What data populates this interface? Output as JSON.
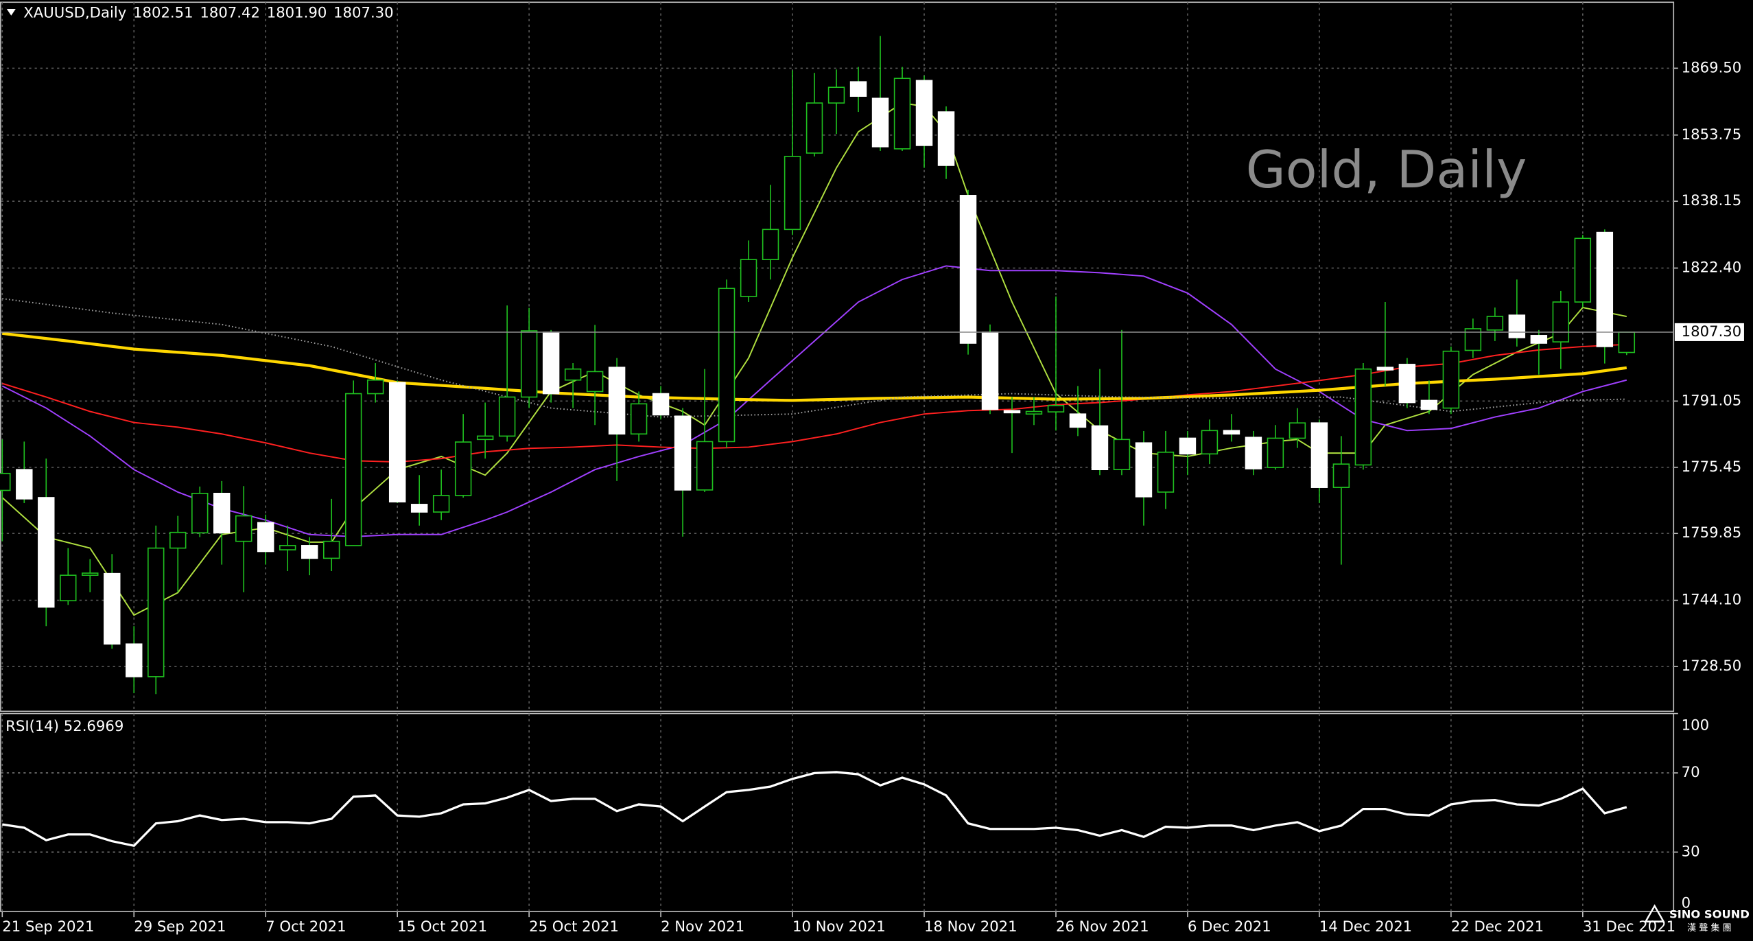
{
  "chart_data": [
    {
      "type": "candlestick",
      "title": "XAUUSD,Daily",
      "ohlc_labels": [
        "1802.51",
        "1807.42",
        "1801.90",
        "1807.30"
      ],
      "annotation": "Gold, Daily",
      "categories": [
        "21 Sep 2021",
        null,
        null,
        null,
        null,
        null,
        "29 Sep 2021",
        null,
        null,
        null,
        null,
        null,
        "7 Oct 2021",
        null,
        null,
        null,
        null,
        null,
        "15 Oct 2021",
        null,
        null,
        null,
        null,
        null,
        "25 Oct 2021",
        null,
        null,
        null,
        null,
        null,
        "2 Nov 2021",
        null,
        null,
        null,
        null,
        null,
        "10 Nov 2021",
        null,
        null,
        null,
        null,
        null,
        "18 Nov 2021",
        null,
        null,
        null,
        null,
        null,
        "26 Nov 2021",
        null,
        null,
        null,
        null,
        null,
        "6 Dec 2021",
        null,
        null,
        null,
        null,
        null,
        "14 Dec 2021",
        null,
        null,
        null,
        null,
        null,
        "22 Dec 2021",
        null,
        null,
        null,
        null,
        null,
        "31 Dec 2021",
        null,
        null
      ],
      "open": [
        1770,
        1774.9,
        1768.3,
        1744,
        1750,
        1750.4,
        1733.8,
        1726.1,
        1756.4,
        1760,
        1769.3,
        1758,
        1762.4,
        1756,
        1757,
        1754,
        1757,
        1792.8,
        1795.4,
        1766.7,
        1764.9,
        1768.8,
        1782,
        1782.8,
        1792,
        1807.3,
        1796,
        1793.3,
        1799,
        1783.3,
        1792.8,
        1787.5,
        1770.1,
        1781.5,
        1815.7,
        1824.4,
        1831.5,
        1849.5,
        1861.3,
        1866.3,
        1862.4,
        1850.5,
        1866.6,
        1859.2,
        1839.5,
        1807.3,
        1788.8,
        1788,
        1788.5,
        1788,
        1785.2,
        1774.9,
        1781.2,
        1769.6,
        1782.3,
        1778.6,
        1784.1,
        1782.5,
        1775.4,
        1782.3,
        1785.9,
        1770.7,
        1776,
        1799,
        1799.7,
        1791.2,
        1789.4,
        1803,
        1807.8,
        1811.3,
        1806.5,
        1805,
        1814.4,
        1830.8,
        1802.51
      ],
      "high": [
        1782,
        1781.5,
        1777.5,
        1756.4,
        1753.8,
        1755,
        1738,
        1761.7,
        1764,
        1770.9,
        1772.2,
        1771,
        1764.3,
        1761.7,
        1759,
        1768,
        1795.9,
        1800,
        1795.9,
        1773.6,
        1774.9,
        1788,
        1790.7,
        1813.6,
        1813,
        1807.8,
        1800,
        1809,
        1801.2,
        1793.3,
        1794.6,
        1789.4,
        1798.6,
        1819.7,
        1828.9,
        1842,
        1869,
        1868.4,
        1869.2,
        1869.8,
        1877.1,
        1869.8,
        1867.7,
        1860.5,
        1840.8,
        1809.1,
        1792,
        1792,
        1815.7,
        1794.6,
        1798.6,
        1807.8,
        1784,
        1784,
        1784,
        1786.7,
        1788,
        1784,
        1785.4,
        1789.4,
        1786.7,
        1782.8,
        1800,
        1814.4,
        1801.2,
        1795.9,
        1803.9,
        1810.5,
        1813.1,
        1819.7,
        1807.8,
        1817,
        1830.2,
        1831.5,
        1807.42
      ],
      "low": [
        1758,
        1767,
        1738,
        1743,
        1746,
        1732.7,
        1722.2,
        1722,
        1746,
        1759,
        1752.5,
        1746,
        1752.5,
        1751,
        1750,
        1751,
        1757,
        1790.7,
        1767,
        1761.7,
        1763,
        1768.3,
        1777.5,
        1781.5,
        1789.4,
        1790.7,
        1789.4,
        1785.4,
        1772.2,
        1781.5,
        1786.7,
        1759.1,
        1769.6,
        1780,
        1814.4,
        1819.7,
        1830.2,
        1848.7,
        1854,
        1859.2,
        1850,
        1850,
        1846,
        1843.4,
        1802,
        1788,
        1778.8,
        1785.4,
        1784.1,
        1782.8,
        1773.6,
        1773.6,
        1761.7,
        1765.6,
        1773.6,
        1776.2,
        1781.5,
        1773.6,
        1774.9,
        1780,
        1767,
        1752.5,
        1774.9,
        1794.6,
        1789.4,
        1788,
        1788,
        1801.2,
        1805.2,
        1803.9,
        1797.3,
        1798.6,
        1813.1,
        1799.9,
        1801.9
      ],
      "close": [
        1774,
        1768,
        1742.5,
        1750,
        1750.5,
        1733.8,
        1726.1,
        1756.4,
        1760.1,
        1769.3,
        1760,
        1764,
        1755.6,
        1757,
        1754,
        1758,
        1792.8,
        1796,
        1767.3,
        1764.9,
        1768.8,
        1781.4,
        1782.8,
        1792,
        1807.6,
        1792.8,
        1798.6,
        1798,
        1783.3,
        1790.4,
        1787.8,
        1770.1,
        1781.5,
        1817.6,
        1824.4,
        1831.5,
        1848.7,
        1861.3,
        1865,
        1862.9,
        1851,
        1867.1,
        1851.3,
        1846.6,
        1804.7,
        1789.1,
        1788.3,
        1788.6,
        1790,
        1784.9,
        1774.9,
        1782,
        1768.5,
        1779,
        1778.6,
        1784.1,
        1783.3,
        1775.1,
        1782.3,
        1785.9,
        1770.7,
        1776.2,
        1798.6,
        1798.4,
        1790.7,
        1789.1,
        1802.8,
        1808.1,
        1811,
        1806,
        1804.7,
        1814.4,
        1829.4,
        1803.9,
        1807.3
      ],
      "bull_color": "#000000",
      "bear_color": "#ffffff",
      "wick_color": "#1fbf1f",
      "overlays": [
        {
          "color": "#b0e040",
          "style": "thin",
          "x": [
            0,
            2,
            4,
            6,
            8,
            10,
            12,
            14,
            15,
            16,
            18,
            20,
            22,
            23,
            25,
            27,
            29,
            31,
            32,
            34,
            36,
            38,
            39,
            41,
            42,
            43,
            44,
            46,
            48,
            50,
            52,
            54,
            56,
            58,
            59,
            60,
            62,
            63,
            65,
            67,
            69,
            71,
            72,
            74
          ],
          "values": [
            1768.3,
            1759,
            1756.4,
            1740.6,
            1745.9,
            1759.6,
            1761.2,
            1757.8,
            1757.8,
            1765.7,
            1774.9,
            1778,
            1773.6,
            1778.8,
            1793.3,
            1798,
            1792.5,
            1788.6,
            1785.4,
            1801.2,
            1824.9,
            1846,
            1854.5,
            1861.3,
            1860.5,
            1854.5,
            1839.5,
            1814.4,
            1792.8,
            1784.1,
            1778.8,
            1778,
            1780,
            1781.5,
            1782,
            1778.8,
            1778.8,
            1785.4,
            1788.6,
            1797.3,
            1802.6,
            1807,
            1813.1,
            1811
          ]
        },
        {
          "color": "#a040ff",
          "style": "thin",
          "x": [
            0,
            2,
            4,
            6,
            8,
            10,
            12,
            14,
            16,
            18,
            20,
            22,
            23,
            25,
            27,
            29,
            31,
            33,
            35,
            37,
            39,
            41,
            43,
            45,
            48,
            50,
            52,
            54,
            56,
            58,
            60,
            62,
            64,
            66,
            68,
            70,
            72,
            74
          ],
          "values": [
            1794.6,
            1789.4,
            1782.8,
            1774.9,
            1769.6,
            1765.7,
            1763,
            1759.6,
            1759.1,
            1759.6,
            1759.6,
            1763,
            1764.9,
            1769.6,
            1774.9,
            1778,
            1780.7,
            1786.7,
            1796,
            1805.2,
            1814.4,
            1819.7,
            1822.9,
            1821.8,
            1821.8,
            1821.3,
            1820.5,
            1816.5,
            1809.1,
            1798.6,
            1793.3,
            1786.7,
            1784.1,
            1784.6,
            1787.3,
            1789.4,
            1793.3,
            1796
          ]
        },
        {
          "color": "#ff2020",
          "style": "thin",
          "x": [
            0,
            2,
            4,
            6,
            8,
            10,
            12,
            14,
            16,
            18,
            20,
            22,
            24,
            26,
            28,
            30,
            32,
            34,
            36,
            38,
            40,
            42,
            44,
            46,
            48,
            50,
            52,
            54,
            56,
            58,
            60,
            62,
            64,
            66,
            68,
            70,
            72,
            74
          ],
          "values": [
            1795.2,
            1792,
            1788.6,
            1786,
            1784.9,
            1783.3,
            1781.2,
            1778.8,
            1777,
            1776.7,
            1777.5,
            1779.1,
            1779.9,
            1780.2,
            1780.7,
            1780.2,
            1779.9,
            1780.2,
            1781.5,
            1783.3,
            1786,
            1788,
            1788.8,
            1789.1,
            1790.2,
            1790.7,
            1791.5,
            1792.5,
            1793.3,
            1794.6,
            1795.9,
            1797.3,
            1799.1,
            1799.9,
            1801.8,
            1803.1,
            1803.9,
            1804.4
          ]
        },
        {
          "color": "#ffd700",
          "style": "thick",
          "x": [
            0,
            3,
            6,
            10,
            14,
            18,
            21,
            25,
            29,
            33,
            36,
            40,
            44,
            48,
            52,
            56,
            60,
            64,
            68,
            72,
            74
          ],
          "values": [
            1807,
            1805.2,
            1803.3,
            1801.8,
            1799.4,
            1795.4,
            1794.4,
            1793,
            1792,
            1791.5,
            1791.2,
            1791.7,
            1792,
            1791.5,
            1791.7,
            1792.5,
            1793.6,
            1795.2,
            1796.2,
            1797.5,
            1798.9
          ]
        },
        {
          "color": "#a0a0a0",
          "style": "dotted",
          "x": [
            0,
            5,
            10,
            15,
            20,
            25,
            30,
            36,
            41,
            46,
            51,
            56,
            61,
            66,
            71,
            74
          ],
          "values": [
            1815.2,
            1811.8,
            1809.1,
            1803.9,
            1796,
            1789.4,
            1787.3,
            1788,
            1792,
            1792.8,
            1792,
            1791.7,
            1792,
            1788.6,
            1791.2,
            1791.5
          ]
        }
      ],
      "last_price": {
        "value": 1807.3,
        "label": "1807.30"
      },
      "ylim": [
        1717.94,
        1885.05
      ],
      "yticks": [
        {
          "value": 1869.5,
          "label": "1869.50"
        },
        1853.75,
        1838.15,
        {
          "value": 1822.4,
          "label": "1822.40"
        },
        1791.05,
        1775.45,
        1759.85,
        {
          "value": 1744.1,
          "label": "1744.10"
        },
        {
          "value": 1728.5,
          "label": "1728.50"
        }
      ],
      "grid": true
    },
    {
      "type": "line",
      "title": "RSI(14) 52.6969",
      "color": "#ffffff",
      "values": [
        44,
        42.3,
        36,
        38.9,
        38.9,
        35.5,
        33.2,
        44.5,
        45.6,
        48.5,
        46.2,
        46.8,
        45.1,
        45.1,
        44.5,
        46.8,
        58,
        58.6,
        48.5,
        47.9,
        49.6,
        54.1,
        54.6,
        57.5,
        61.4,
        55.8,
        56.9,
        56.9,
        50.7,
        54.1,
        53,
        45.6,
        53,
        60.3,
        61.4,
        63.1,
        67,
        69.9,
        70.4,
        69.3,
        63.7,
        67.6,
        64.2,
        58.6,
        44.5,
        41.7,
        41.7,
        41.7,
        42.3,
        41.1,
        38.3,
        41.1,
        37.7,
        42.8,
        42.3,
        43.4,
        43.4,
        41.1,
        43.4,
        45.1,
        40.6,
        43.4,
        51.8,
        51.8,
        49,
        48.5,
        54.1,
        55.8,
        56.3,
        54.1,
        53.5,
        56.9,
        62,
        49.6,
        52.6969
      ],
      "ylim": [
        0,
        100
      ],
      "yticks": [
        100,
        70,
        30,
        0
      ],
      "levels": [
        70,
        30
      ]
    }
  ],
  "logo": {
    "name": "SINO SOUND",
    "subtitle": "漢 聲 集 團"
  }
}
